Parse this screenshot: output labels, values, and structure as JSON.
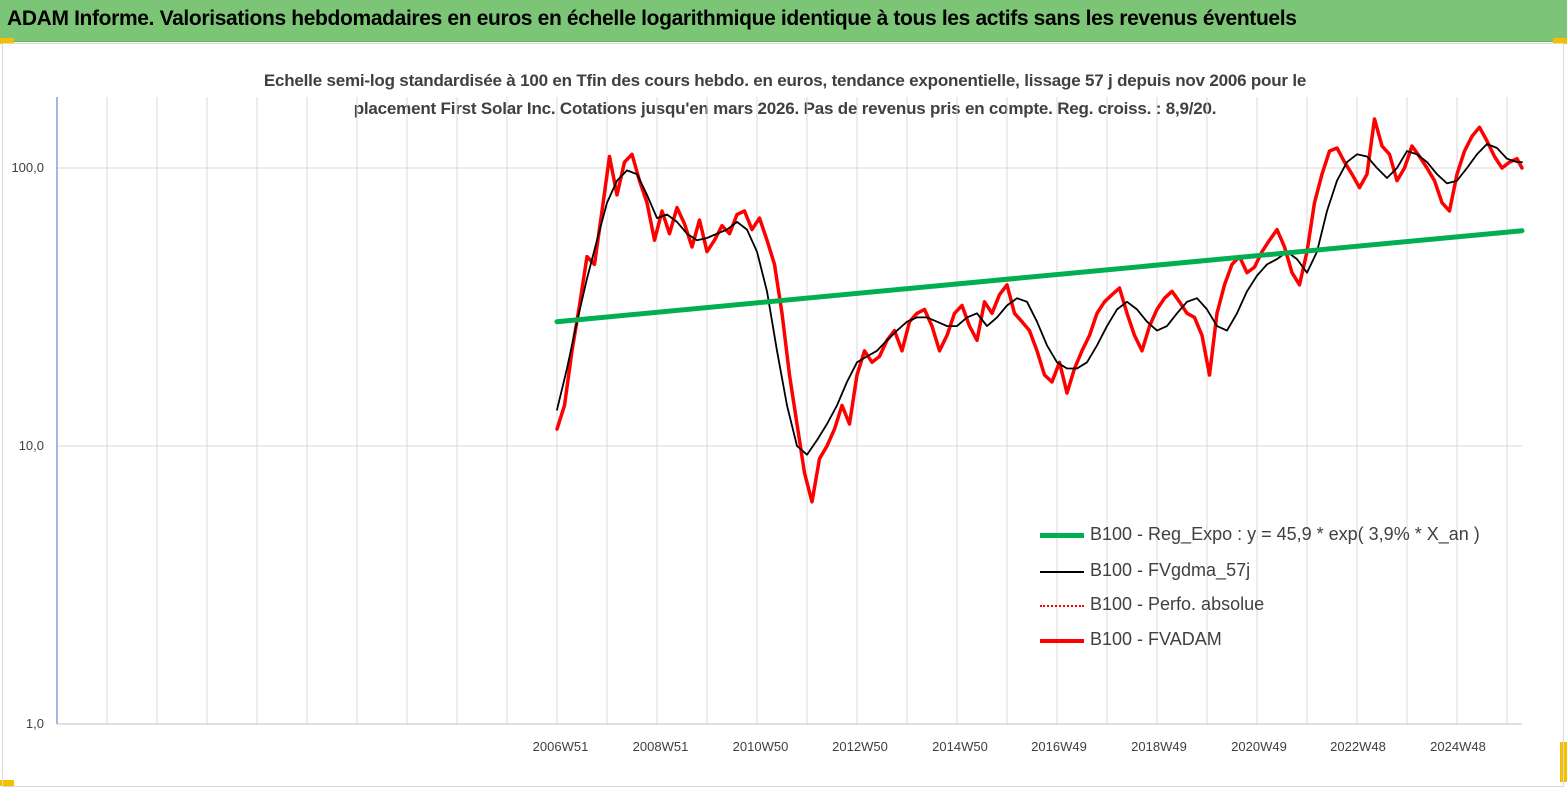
{
  "banner": {
    "title": "ADAM Informe. Valorisations hebdomadaires en euros en échelle logarithmique identique à tous les actifs sans les revenus éventuels",
    "background": "#7cc576",
    "corner_color": "#f5c000"
  },
  "chart_data": {
    "type": "line",
    "title": "Echelle semi-log standardisée à 100 en Tfin des cours hebdo. en euros, tendance exponentielle, lissage 57 j depuis nov 2006 pour le placement First Solar Inc. Cotations jusqu'en mars 2026. Pas de revenus pris en compte. Reg. croiss. : 8,9/20.",
    "title_lines": [
      "Echelle semi-log standardisée à 100 en Tfin des cours hebdo. en euros, tendance exponentielle, lissage 57 j depuis nov 2006 pour le",
      "placement First Solar Inc. Cotations jusqu'en mars 2026. Pas de revenus pris en compte. Reg. croiss. : 8,9/20."
    ],
    "y_scale": "log",
    "ylim": [
      1,
      180
    ],
    "y_ticks": [
      {
        "value": 1,
        "label": "1,0"
      },
      {
        "value": 10,
        "label": "10,0"
      },
      {
        "value": 100,
        "label": "100,0"
      }
    ],
    "xlim": [
      1996.9,
      2026.2
    ],
    "x_ticks": [
      {
        "value": 2006.97,
        "label": "2006W51"
      },
      {
        "value": 2008.97,
        "label": "2008W51"
      },
      {
        "value": 2010.97,
        "label": "2010W50"
      },
      {
        "value": 2012.96,
        "label": "2012W50"
      },
      {
        "value": 2014.96,
        "label": "2014W50"
      },
      {
        "value": 2016.94,
        "label": "2016W49"
      },
      {
        "value": 2018.94,
        "label": "2018W49"
      },
      {
        "value": 2020.94,
        "label": "2020W49"
      },
      {
        "value": 2022.92,
        "label": "2022W48"
      },
      {
        "value": 2024.92,
        "label": "2024W48"
      }
    ],
    "grid": "vertical",
    "legend_position": "lower-right",
    "series": [
      {
        "name": "B100 - Reg_Expo : y = 45,9 * exp( 3,9% *  X_an )",
        "color": "#00b050",
        "style": "solid-thick",
        "x": [
          2006.9,
          2026.2
        ],
        "values": [
          28.0,
          59.5
        ]
      },
      {
        "name": "B100 - FVgdma_57j",
        "color": "#000000",
        "style": "solid-thin",
        "x": [
          2006.9,
          2007.1,
          2007.3,
          2007.5,
          2007.7,
          2007.9,
          2008.1,
          2008.3,
          2008.5,
          2008.7,
          2008.9,
          2009.1,
          2009.3,
          2009.5,
          2009.7,
          2009.9,
          2010.1,
          2010.3,
          2010.5,
          2010.7,
          2010.9,
          2011.1,
          2011.3,
          2011.5,
          2011.7,
          2011.9,
          2012.1,
          2012.3,
          2012.5,
          2012.7,
          2012.9,
          2013.1,
          2013.3,
          2013.5,
          2013.7,
          2013.9,
          2014.1,
          2014.3,
          2014.5,
          2014.7,
          2014.9,
          2015.1,
          2015.3,
          2015.5,
          2015.7,
          2015.9,
          2016.1,
          2016.3,
          2016.5,
          2016.7,
          2016.9,
          2017.1,
          2017.3,
          2017.5,
          2017.7,
          2017.9,
          2018.1,
          2018.3,
          2018.5,
          2018.7,
          2018.9,
          2019.1,
          2019.3,
          2019.5,
          2019.7,
          2019.9,
          2020.1,
          2020.3,
          2020.5,
          2020.7,
          2020.9,
          2021.1,
          2021.3,
          2021.5,
          2021.7,
          2021.9,
          2022.1,
          2022.3,
          2022.5,
          2022.7,
          2022.9,
          2023.1,
          2023.3,
          2023.5,
          2023.7,
          2023.9,
          2024.1,
          2024.3,
          2024.5,
          2024.7,
          2024.9,
          2025.1,
          2025.3,
          2025.5,
          2025.7,
          2025.9,
          2026.1,
          2026.2
        ],
        "values": [
          13.5,
          19,
          28,
          40,
          55,
          75,
          90,
          98,
          95,
          80,
          66,
          68,
          64,
          58,
          55,
          56,
          58,
          60,
          64,
          60,
          50,
          36,
          22,
          14,
          10,
          9.3,
          10.5,
          12,
          14,
          17,
          20,
          21,
          22,
          24,
          26,
          28,
          29,
          29,
          28,
          27,
          27,
          29,
          30,
          27,
          29,
          32,
          34,
          33,
          28,
          23,
          20,
          19,
          19,
          20,
          23,
          27,
          31,
          33,
          31,
          28,
          26,
          27,
          30,
          33,
          34,
          31,
          27,
          26,
          30,
          36,
          41,
          45,
          47,
          50,
          47,
          42,
          50,
          70,
          90,
          105,
          112,
          110,
          100,
          92,
          100,
          115,
          112,
          105,
          95,
          88,
          90,
          100,
          112,
          122,
          118,
          108,
          105,
          105
        ]
      },
      {
        "name": "B100 - Perfo. absolue",
        "color": "#ff0000",
        "style": "dotted"
      },
      {
        "name": "B100 - FVADAM",
        "color": "#ff0000",
        "style": "solid-thick",
        "x": [
          2006.9,
          2007.05,
          2007.2,
          2007.35,
          2007.5,
          2007.65,
          2007.8,
          2007.95,
          2008.1,
          2008.25,
          2008.4,
          2008.55,
          2008.7,
          2008.85,
          2009.0,
          2009.15,
          2009.3,
          2009.45,
          2009.6,
          2009.75,
          2009.9,
          2010.05,
          2010.2,
          2010.35,
          2010.5,
          2010.65,
          2010.8,
          2010.95,
          2011.1,
          2011.25,
          2011.4,
          2011.55,
          2011.7,
          2011.85,
          2012.0,
          2012.15,
          2012.3,
          2012.45,
          2012.6,
          2012.75,
          2012.9,
          2013.05,
          2013.2,
          2013.35,
          2013.5,
          2013.65,
          2013.8,
          2013.95,
          2014.1,
          2014.25,
          2014.4,
          2014.55,
          2014.7,
          2014.85,
          2015.0,
          2015.15,
          2015.3,
          2015.45,
          2015.6,
          2015.75,
          2015.9,
          2016.05,
          2016.2,
          2016.35,
          2016.5,
          2016.65,
          2016.8,
          2016.95,
          2017.1,
          2017.25,
          2017.4,
          2017.55,
          2017.7,
          2017.85,
          2018.0,
          2018.15,
          2018.3,
          2018.45,
          2018.6,
          2018.75,
          2018.9,
          2019.05,
          2019.2,
          2019.35,
          2019.5,
          2019.65,
          2019.8,
          2019.95,
          2020.1,
          2020.25,
          2020.4,
          2020.55,
          2020.7,
          2020.85,
          2021.0,
          2021.15,
          2021.3,
          2021.45,
          2021.6,
          2021.75,
          2021.9,
          2022.05,
          2022.2,
          2022.35,
          2022.5,
          2022.65,
          2022.8,
          2022.95,
          2023.1,
          2023.25,
          2023.4,
          2023.55,
          2023.7,
          2023.85,
          2024.0,
          2024.15,
          2024.3,
          2024.45,
          2024.6,
          2024.75,
          2024.9,
          2025.05,
          2025.2,
          2025.35,
          2025.5,
          2025.65,
          2025.8,
          2025.95,
          2026.1,
          2026.2
        ],
        "values": [
          11.5,
          14,
          22,
          32,
          48,
          45,
          70,
          110,
          80,
          105,
          112,
          90,
          75,
          55,
          70,
          58,
          72,
          63,
          52,
          65,
          50,
          55,
          62,
          58,
          68,
          70,
          60,
          66,
          55,
          45,
          30,
          18,
          12,
          8,
          6.3,
          9,
          10,
          11.5,
          14,
          12,
          18,
          22,
          20,
          21,
          24,
          26,
          22,
          28,
          30,
          31,
          27,
          22,
          25,
          30,
          32,
          27,
          24,
          33,
          30,
          35,
          38,
          30,
          28,
          26,
          22,
          18,
          17,
          20,
          15.5,
          19,
          22,
          25,
          30,
          33,
          35,
          37,
          30,
          25,
          22,
          27,
          31,
          34,
          36,
          33,
          30,
          29,
          25,
          18,
          30,
          38,
          45,
          48,
          42,
          44,
          50,
          55,
          60,
          52,
          42,
          38,
          50,
          75,
          95,
          115,
          118,
          105,
          95,
          85,
          95,
          150,
          120,
          112,
          90,
          100,
          120,
          110,
          100,
          90,
          75,
          70,
          95,
          115,
          130,
          140,
          125,
          110,
          100,
          105,
          108,
          100
        ]
      }
    ]
  }
}
